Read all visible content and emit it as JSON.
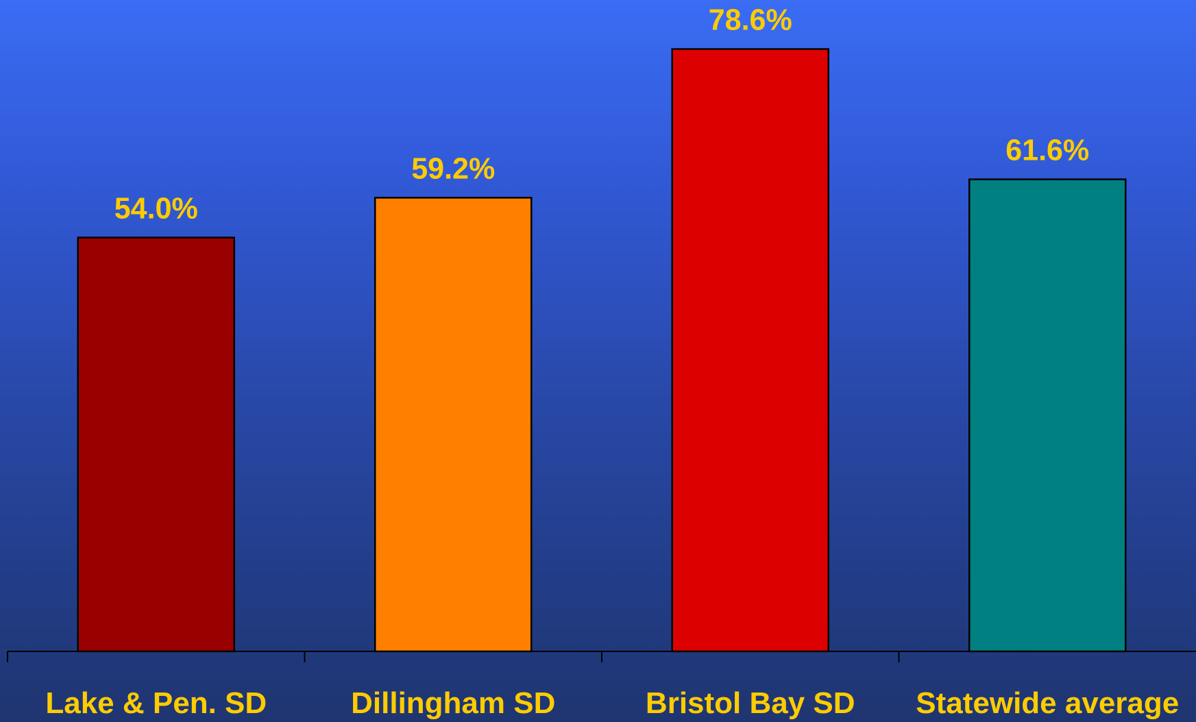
{
  "chart_data": {
    "type": "bar",
    "categories": [
      "Lake & Pen. SD",
      "Dillingham SD",
      "Bristol Bay SD",
      "Statewide average"
    ],
    "values": [
      54.0,
      59.2,
      78.6,
      61.6
    ],
    "value_labels": [
      "54.0%",
      "59.2%",
      "78.6%",
      "61.6%"
    ],
    "bar_colors": [
      "#990000",
      "#ff8000",
      "#dd0000",
      "#008080"
    ],
    "label_color": "#ffcc00",
    "ylim": [
      0,
      85
    ],
    "grid": false,
    "legend": "none"
  }
}
